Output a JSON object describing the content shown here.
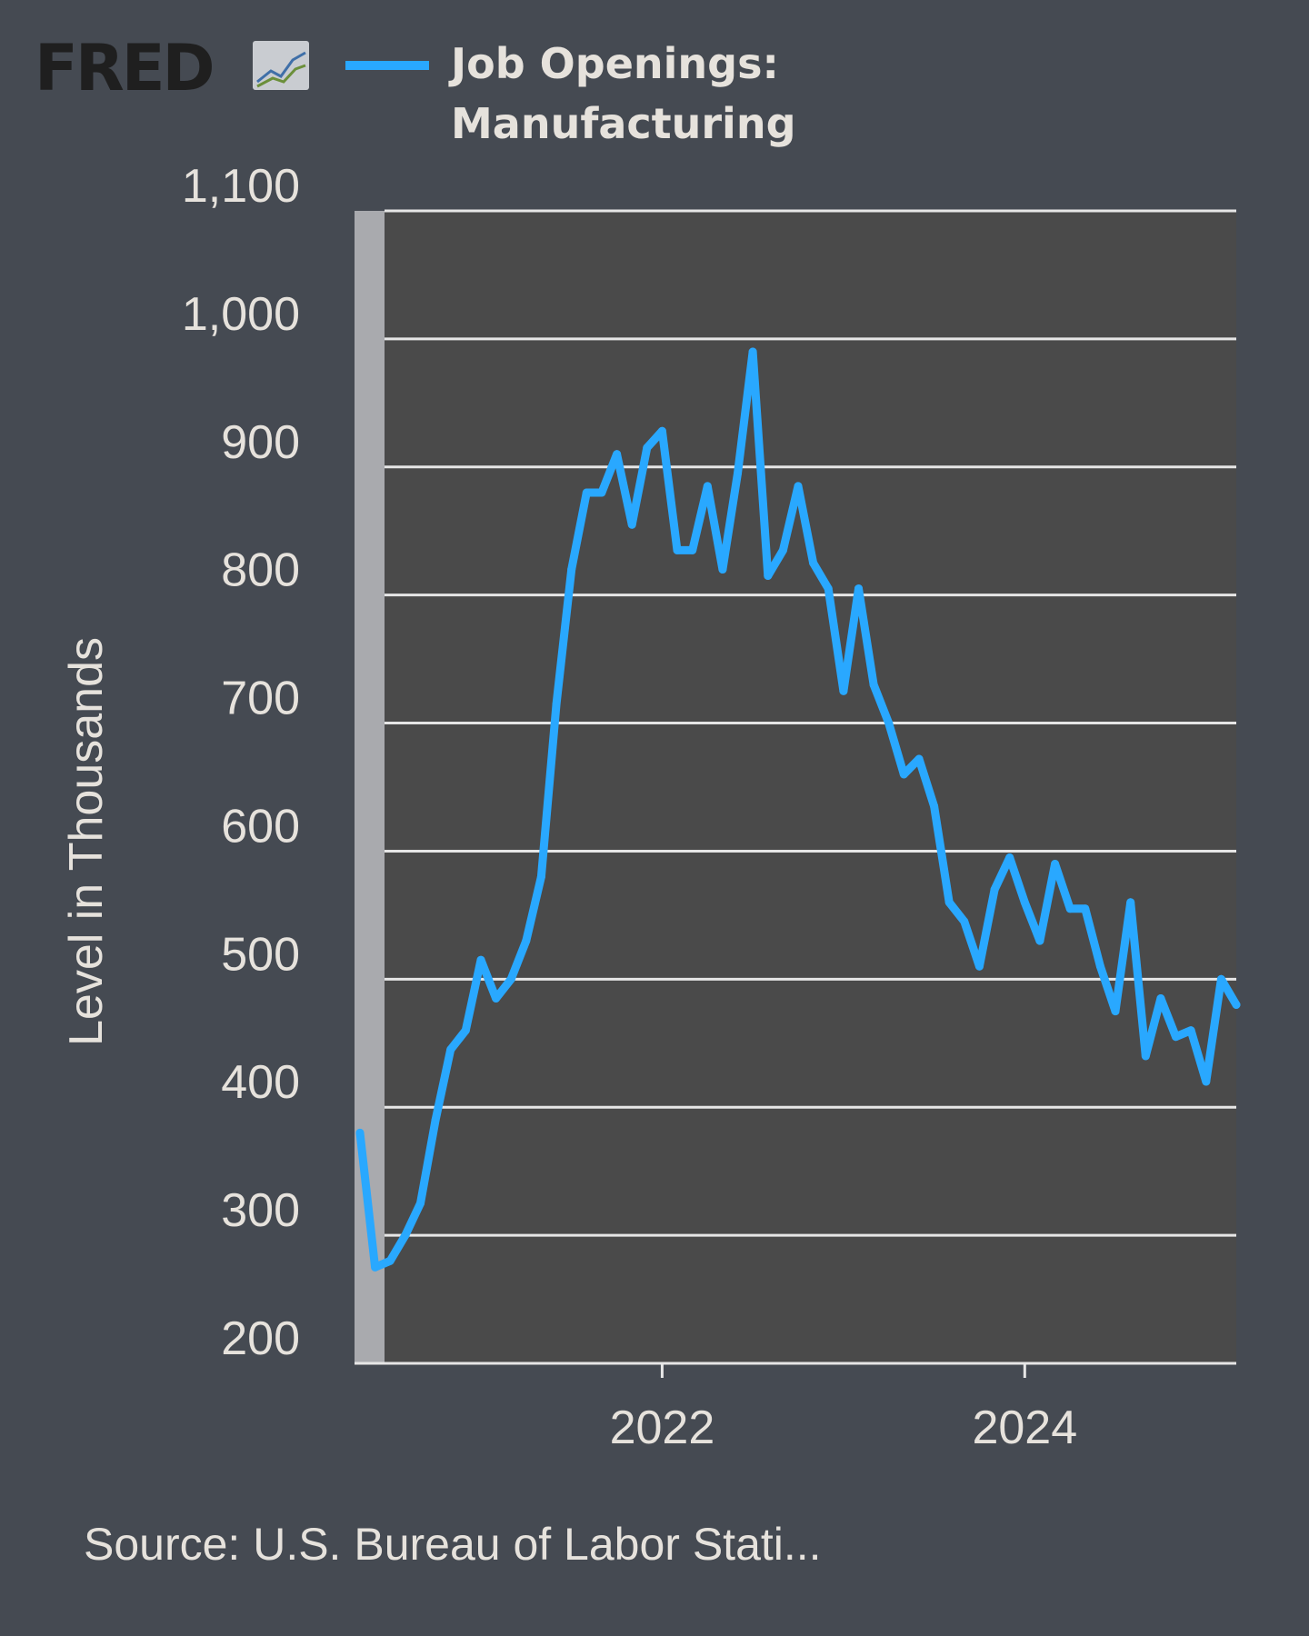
{
  "header": {
    "logo_text": "FRED",
    "logo_icon": "line-chart-icon",
    "legend_line1": "Job Openings:",
    "legend_line2": "Manufacturing"
  },
  "footer": {
    "source": "Source: U.S. Bureau of Labor Stati..."
  },
  "colors": {
    "background": "#454a52",
    "plot_background": "#4a4a4a",
    "series": "#29a8ff",
    "gridline": "#e6e6e6",
    "text": "#e6e2dc",
    "left_band": "#a9aaae"
  },
  "chart_data": {
    "type": "line",
    "title": "",
    "xlabel": "",
    "ylabel": "Level in Thousands",
    "ylim": [
      200,
      1100
    ],
    "yticks": [
      200,
      300,
      400,
      500,
      600,
      700,
      800,
      900,
      1000,
      1100
    ],
    "ytick_labels": [
      "200",
      "300",
      "400",
      "500",
      "600",
      "700",
      "800",
      "900",
      "1,000",
      "1,100"
    ],
    "xlim": [
      "2020-05",
      "2025-03"
    ],
    "xticks": [
      "2022-01",
      "2024-01"
    ],
    "xtick_labels": [
      "2022",
      "2024"
    ],
    "grid": true,
    "legend": "top",
    "series": [
      {
        "name": "Job Openings: Manufacturing",
        "x": [
          "2020-05",
          "2020-06",
          "2020-07",
          "2020-08",
          "2020-09",
          "2020-10",
          "2020-11",
          "2020-12",
          "2021-01",
          "2021-02",
          "2021-03",
          "2021-04",
          "2021-05",
          "2021-06",
          "2021-07",
          "2021-08",
          "2021-09",
          "2021-10",
          "2021-11",
          "2021-12",
          "2022-01",
          "2022-02",
          "2022-03",
          "2022-04",
          "2022-05",
          "2022-06",
          "2022-07",
          "2022-08",
          "2022-09",
          "2022-10",
          "2022-11",
          "2022-12",
          "2023-01",
          "2023-02",
          "2023-03",
          "2023-04",
          "2023-05",
          "2023-06",
          "2023-07",
          "2023-08",
          "2023-09",
          "2023-10",
          "2023-11",
          "2023-12",
          "2024-01",
          "2024-02",
          "2024-03",
          "2024-04",
          "2024-05",
          "2024-06",
          "2024-07",
          "2024-08",
          "2024-09",
          "2024-10",
          "2024-11",
          "2024-12",
          "2025-01",
          "2025-02",
          "2025-03"
        ],
        "values": [
          380,
          275,
          280,
          300,
          325,
          390,
          445,
          460,
          515,
          485,
          500,
          530,
          580,
          715,
          820,
          880,
          880,
          910,
          855,
          915,
          928,
          835,
          835,
          885,
          820,
          895,
          990,
          815,
          835,
          885,
          825,
          805,
          725,
          805,
          730,
          700,
          660,
          672,
          635,
          560,
          545,
          510,
          570,
          595,
          560,
          530,
          590,
          555,
          555,
          510,
          475,
          560,
          440,
          485,
          455,
          460,
          420,
          500,
          480
        ]
      }
    ]
  }
}
